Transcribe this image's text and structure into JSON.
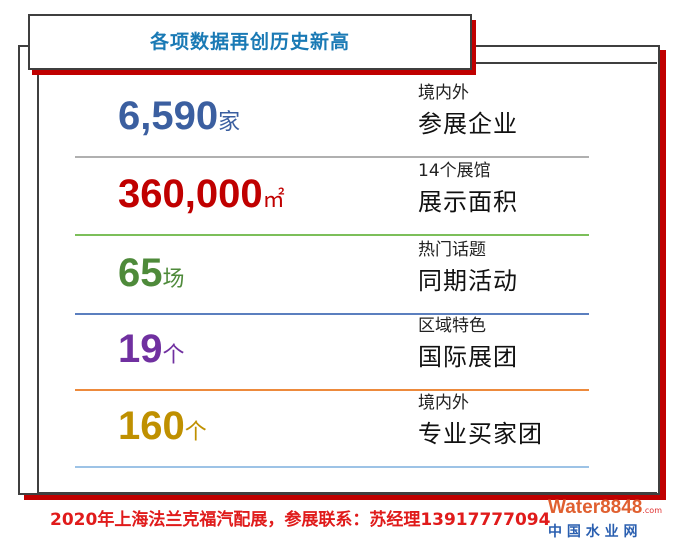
{
  "title": "各项数据再创历史新高",
  "colors": {
    "frame": "#3f3f3f",
    "shadow": "#c00000",
    "title": "#1a7ab5"
  },
  "stats": [
    {
      "number": "6,590",
      "unit": "家",
      "small": "境内外",
      "big": "参展企业",
      "number_color": "#3b5fa0",
      "line_color": "#b0b0b0"
    },
    {
      "number": "360,000",
      "unit": "㎡",
      "small": "14个展馆",
      "big": "展示面积",
      "number_color": "#c00000",
      "line_color": "#7cbf5a"
    },
    {
      "number": "65",
      "unit": "场",
      "small": "热门话题",
      "big": "同期活动",
      "number_color": "#4e8a3a",
      "line_color": "#5b7fbf"
    },
    {
      "number": "19",
      "unit": "个",
      "small": "区域特色",
      "big": "国际展团",
      "number_color": "#7030a0",
      "line_color": "#ed8a3c"
    },
    {
      "number": "160",
      "unit": "个",
      "small": "境内外",
      "big": "专业买家团",
      "number_color": "#bf9000",
      "line_color": "#9dc3e6"
    }
  ],
  "footer": "2020年上海法兰克福汽配展，参展联系：苏经理13917777094",
  "watermark": {
    "brand": "Water8848",
    "com": ".com",
    "cn": "中 国 水 业 网"
  }
}
